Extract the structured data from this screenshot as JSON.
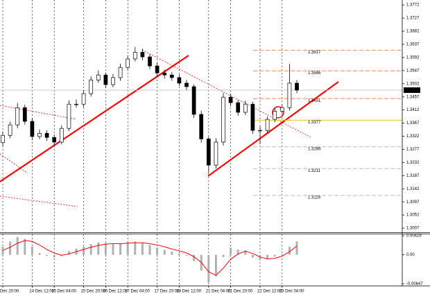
{
  "chart_data": {
    "type": "candlestick",
    "categories": [
      "Dec 20:00",
      null,
      null,
      null,
      "14 Dec 12:00",
      null,
      null,
      "15 Dec 04:00",
      null,
      null,
      null,
      "15 Dec 20:00",
      null,
      null,
      "16 Dec 12:00",
      null,
      null,
      "17 Dec 04:00",
      null,
      null,
      null,
      "17 Dec 20:00",
      null,
      null,
      "18 Dec 12:00",
      null,
      null,
      null,
      "21 Dec 04:00",
      null,
      null,
      "21 Dec 20:00",
      null,
      null,
      null,
      "22 Dec 12:00",
      null,
      null,
      "23 Dec 04:00",
      null,
      null
    ],
    "open": [
      1.33,
      1.3325,
      1.3361,
      1.342,
      1.3373,
      1.3321,
      1.3332,
      1.3318,
      1.3302,
      1.3349,
      1.3432,
      1.3432,
      1.3468,
      1.3515,
      1.3532,
      1.3499,
      1.3523,
      1.3558,
      1.3587,
      1.361,
      1.3594,
      1.3563,
      1.3539,
      1.3532,
      1.3523,
      1.3504,
      1.3492,
      1.3397,
      1.3313,
      1.3223,
      1.3302,
      1.3456,
      1.3437,
      1.3404,
      1.3432,
      1.3342,
      1.3342,
      1.338,
      1.3408,
      1.342,
      1.3504
    ],
    "high": [
      1.3338,
      1.3372,
      1.3436,
      1.343,
      1.3384,
      1.3345,
      1.3342,
      1.3328,
      1.336,
      1.3445,
      1.3448,
      1.348,
      1.3528,
      1.3548,
      1.354,
      1.3536,
      1.357,
      1.36,
      1.3628,
      1.3622,
      1.3604,
      1.3575,
      1.355,
      1.3542,
      1.3534,
      1.3515,
      1.35,
      1.341,
      1.332,
      1.3315,
      1.347,
      1.3466,
      1.3446,
      1.3444,
      1.344,
      1.3356,
      1.339,
      1.3418,
      1.3432,
      1.357,
      1.3515
    ],
    "low": [
      1.3288,
      1.3315,
      1.335,
      1.3362,
      1.331,
      1.3312,
      1.3306,
      1.329,
      1.3294,
      1.334,
      1.342,
      1.3422,
      1.3458,
      1.3505,
      1.3488,
      1.349,
      1.3512,
      1.3548,
      1.3578,
      1.3582,
      1.3552,
      1.3528,
      1.352,
      1.3512,
      1.3494,
      1.348,
      1.3385,
      1.33,
      1.3196,
      1.3212,
      1.329,
      1.3425,
      1.3392,
      1.3395,
      1.333,
      1.3295,
      1.3332,
      1.337,
      1.3398,
      1.341,
      1.347
    ],
    "close": [
      1.3325,
      1.3361,
      1.342,
      1.3373,
      1.3321,
      1.3332,
      1.3318,
      1.3302,
      1.3349,
      1.3432,
      1.3432,
      1.3468,
      1.3515,
      1.3532,
      1.3499,
      1.3523,
      1.3558,
      1.3587,
      1.361,
      1.3594,
      1.3563,
      1.3539,
      1.3532,
      1.3523,
      1.3504,
      1.3492,
      1.3397,
      1.3313,
      1.3223,
      1.3302,
      1.3456,
      1.3437,
      1.3404,
      1.3432,
      1.3342,
      1.3342,
      1.338,
      1.3408,
      1.342,
      1.3504,
      1.348
    ],
    "ylim": [
      1.2993,
      1.3789
    ],
    "yticks": [
      1.3772,
      1.3727,
      1.3682,
      1.3637,
      1.3592,
      1.3547,
      1.3502,
      1.3457,
      1.3412,
      1.3367,
      1.3322,
      1.3277,
      1.3232,
      1.3187,
      1.3142,
      1.3097,
      1.3052,
      1.3007
    ],
    "current_price": {
      "value": 1.348,
      "label": "1.3480"
    },
    "levels": [
      1.3617,
      1.3546,
      1.3451,
      1.3377,
      1.3286,
      1.3211,
      1.3119
    ],
    "level_colors": [
      "#f08a4b",
      "#f08a4b",
      "#f08a4b",
      "#e8c800",
      "#bbbbbb",
      "#bbbbbb",
      "#bbbbbb"
    ],
    "grid": true,
    "indicator": {
      "type": "macd",
      "histogram": [
        0.0018,
        0.003,
        0.004,
        0.0036,
        0.0018,
        0.0004,
        -0.0002,
        -0.0006,
        -0.0003,
        0.0008,
        0.0014,
        0.0018,
        0.0024,
        0.0028,
        0.0026,
        0.0024,
        0.0026,
        0.0028,
        0.003,
        0.0027,
        0.0022,
        0.0016,
        0.0011,
        0.0007,
        0.0003,
        -0.0002,
        -0.0014,
        -0.0035,
        -0.0062,
        -0.0048,
        -0.0005,
        0.0016,
        0.0012,
        0.001,
        -0.0006,
        -0.0012,
        -0.001,
        -0.0004,
        0.0002,
        0.0018,
        0.003
      ],
      "signal": [
        0.001,
        0.0017,
        0.0026,
        0.0032,
        0.003,
        0.0022,
        0.0012,
        0.0004,
        -0.0001,
        0.0002,
        0.0007,
        0.0012,
        0.0017,
        0.0021,
        0.0024,
        0.0025,
        0.0025,
        0.0026,
        0.0027,
        0.0027,
        0.0025,
        0.0022,
        0.0018,
        0.0013,
        0.0009,
        0.0004,
        -0.0004,
        -0.0017,
        -0.0038,
        -0.0046,
        -0.003,
        -0.001,
        0.0002,
        0.0008,
        0.0003,
        -0.0005,
        -0.0009,
        -0.0008,
        -0.0003,
        0.0007,
        0.002
      ],
      "signal_color": "#ff0000",
      "ylim": [
        -0.0069,
        0.0046
      ],
      "yticks": [
        0.00429,
        {
          "value": 0,
          "label": "0.00"
        },
        -0.00647
      ]
    }
  }
}
